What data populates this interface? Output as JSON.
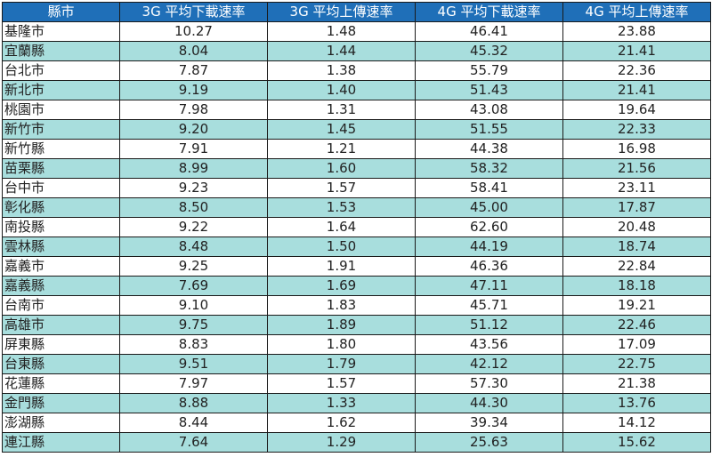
{
  "table": {
    "headers": [
      "縣市",
      "3G 平均下載速率",
      "3G 平均上傳速率",
      "4G 平均下載速率",
      "4G 平均上傳速率"
    ],
    "rows": [
      [
        "基隆市",
        "10.27",
        "1.48",
        "46.41",
        "23.88"
      ],
      [
        "宜蘭縣",
        "8.04",
        "1.44",
        "45.32",
        "21.41"
      ],
      [
        "台北市",
        "7.87",
        "1.38",
        "55.79",
        "22.36"
      ],
      [
        "新北市",
        "9.19",
        "1.40",
        "51.43",
        "21.41"
      ],
      [
        "桃園市",
        "7.98",
        "1.31",
        "43.08",
        "19.64"
      ],
      [
        "新竹市",
        "9.20",
        "1.45",
        "51.55",
        "22.33"
      ],
      [
        "新竹縣",
        "7.91",
        "1.21",
        "44.38",
        "16.98"
      ],
      [
        "苗栗縣",
        "8.99",
        "1.60",
        "58.32",
        "21.56"
      ],
      [
        "台中市",
        "9.23",
        "1.57",
        "58.41",
        "23.11"
      ],
      [
        "彰化縣",
        "8.50",
        "1.53",
        "45.00",
        "17.87"
      ],
      [
        "南投縣",
        "9.22",
        "1.64",
        "62.60",
        "20.48"
      ],
      [
        "雲林縣",
        "8.48",
        "1.50",
        "44.19",
        "18.74"
      ],
      [
        "嘉義市",
        "9.25",
        "1.91",
        "46.36",
        "22.84"
      ],
      [
        "嘉義縣",
        "7.69",
        "1.69",
        "47.11",
        "18.18"
      ],
      [
        "台南市",
        "9.10",
        "1.83",
        "45.71",
        "19.21"
      ],
      [
        "高雄市",
        "9.75",
        "1.89",
        "51.12",
        "22.46"
      ],
      [
        "屏東縣",
        "8.83",
        "1.80",
        "43.56",
        "17.09"
      ],
      [
        "台東縣",
        "9.51",
        "1.79",
        "42.12",
        "22.75"
      ],
      [
        "花蓮縣",
        "7.97",
        "1.57",
        "57.30",
        "21.38"
      ],
      [
        "金門縣",
        "8.88",
        "1.33",
        "44.30",
        "13.76"
      ],
      [
        "澎湖縣",
        "8.44",
        "1.62",
        "39.34",
        "14.12"
      ],
      [
        "連江縣",
        "7.64",
        "1.29",
        "25.63",
        "15.62"
      ]
    ]
  },
  "colors": {
    "header_bg": "#1f6fb8",
    "header_text": "#ffffff",
    "row_alt_bg": "#a8dedd",
    "row_bg": "#ffffff",
    "border": "#1a1a1a"
  }
}
